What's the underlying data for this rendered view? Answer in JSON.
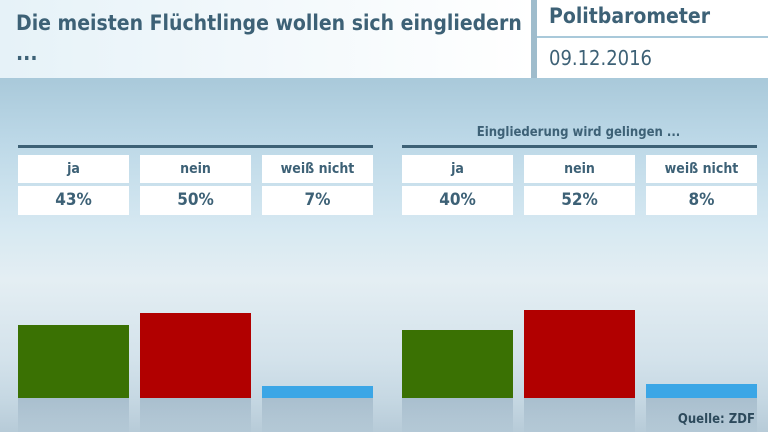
{
  "header": {
    "title": "Die meisten Flüchtlinge wollen sich eingliedern ...",
    "brand": "Politbarometer",
    "date": "09.12.2016"
  },
  "source": "Quelle: ZDF",
  "chart_data": [
    {
      "type": "bar",
      "title": "",
      "categories": [
        "ja",
        "nein",
        "weiß nicht"
      ],
      "values": [
        43,
        50,
        7
      ],
      "labels": [
        "43%",
        "50%",
        "7%"
      ],
      "colors": [
        "#3a7103",
        "#b10000",
        "#3ba6e6"
      ],
      "ylim": [
        0,
        100
      ]
    },
    {
      "type": "bar",
      "title": "Eingliederung wird gelingen ...",
      "categories": [
        "ja",
        "nein",
        "weiß nicht"
      ],
      "values": [
        40,
        52,
        8
      ],
      "labels": [
        "40%",
        "52%",
        "8%"
      ],
      "colors": [
        "#3a7103",
        "#b10000",
        "#3ba6e6"
      ],
      "ylim": [
        0,
        100
      ]
    }
  ]
}
